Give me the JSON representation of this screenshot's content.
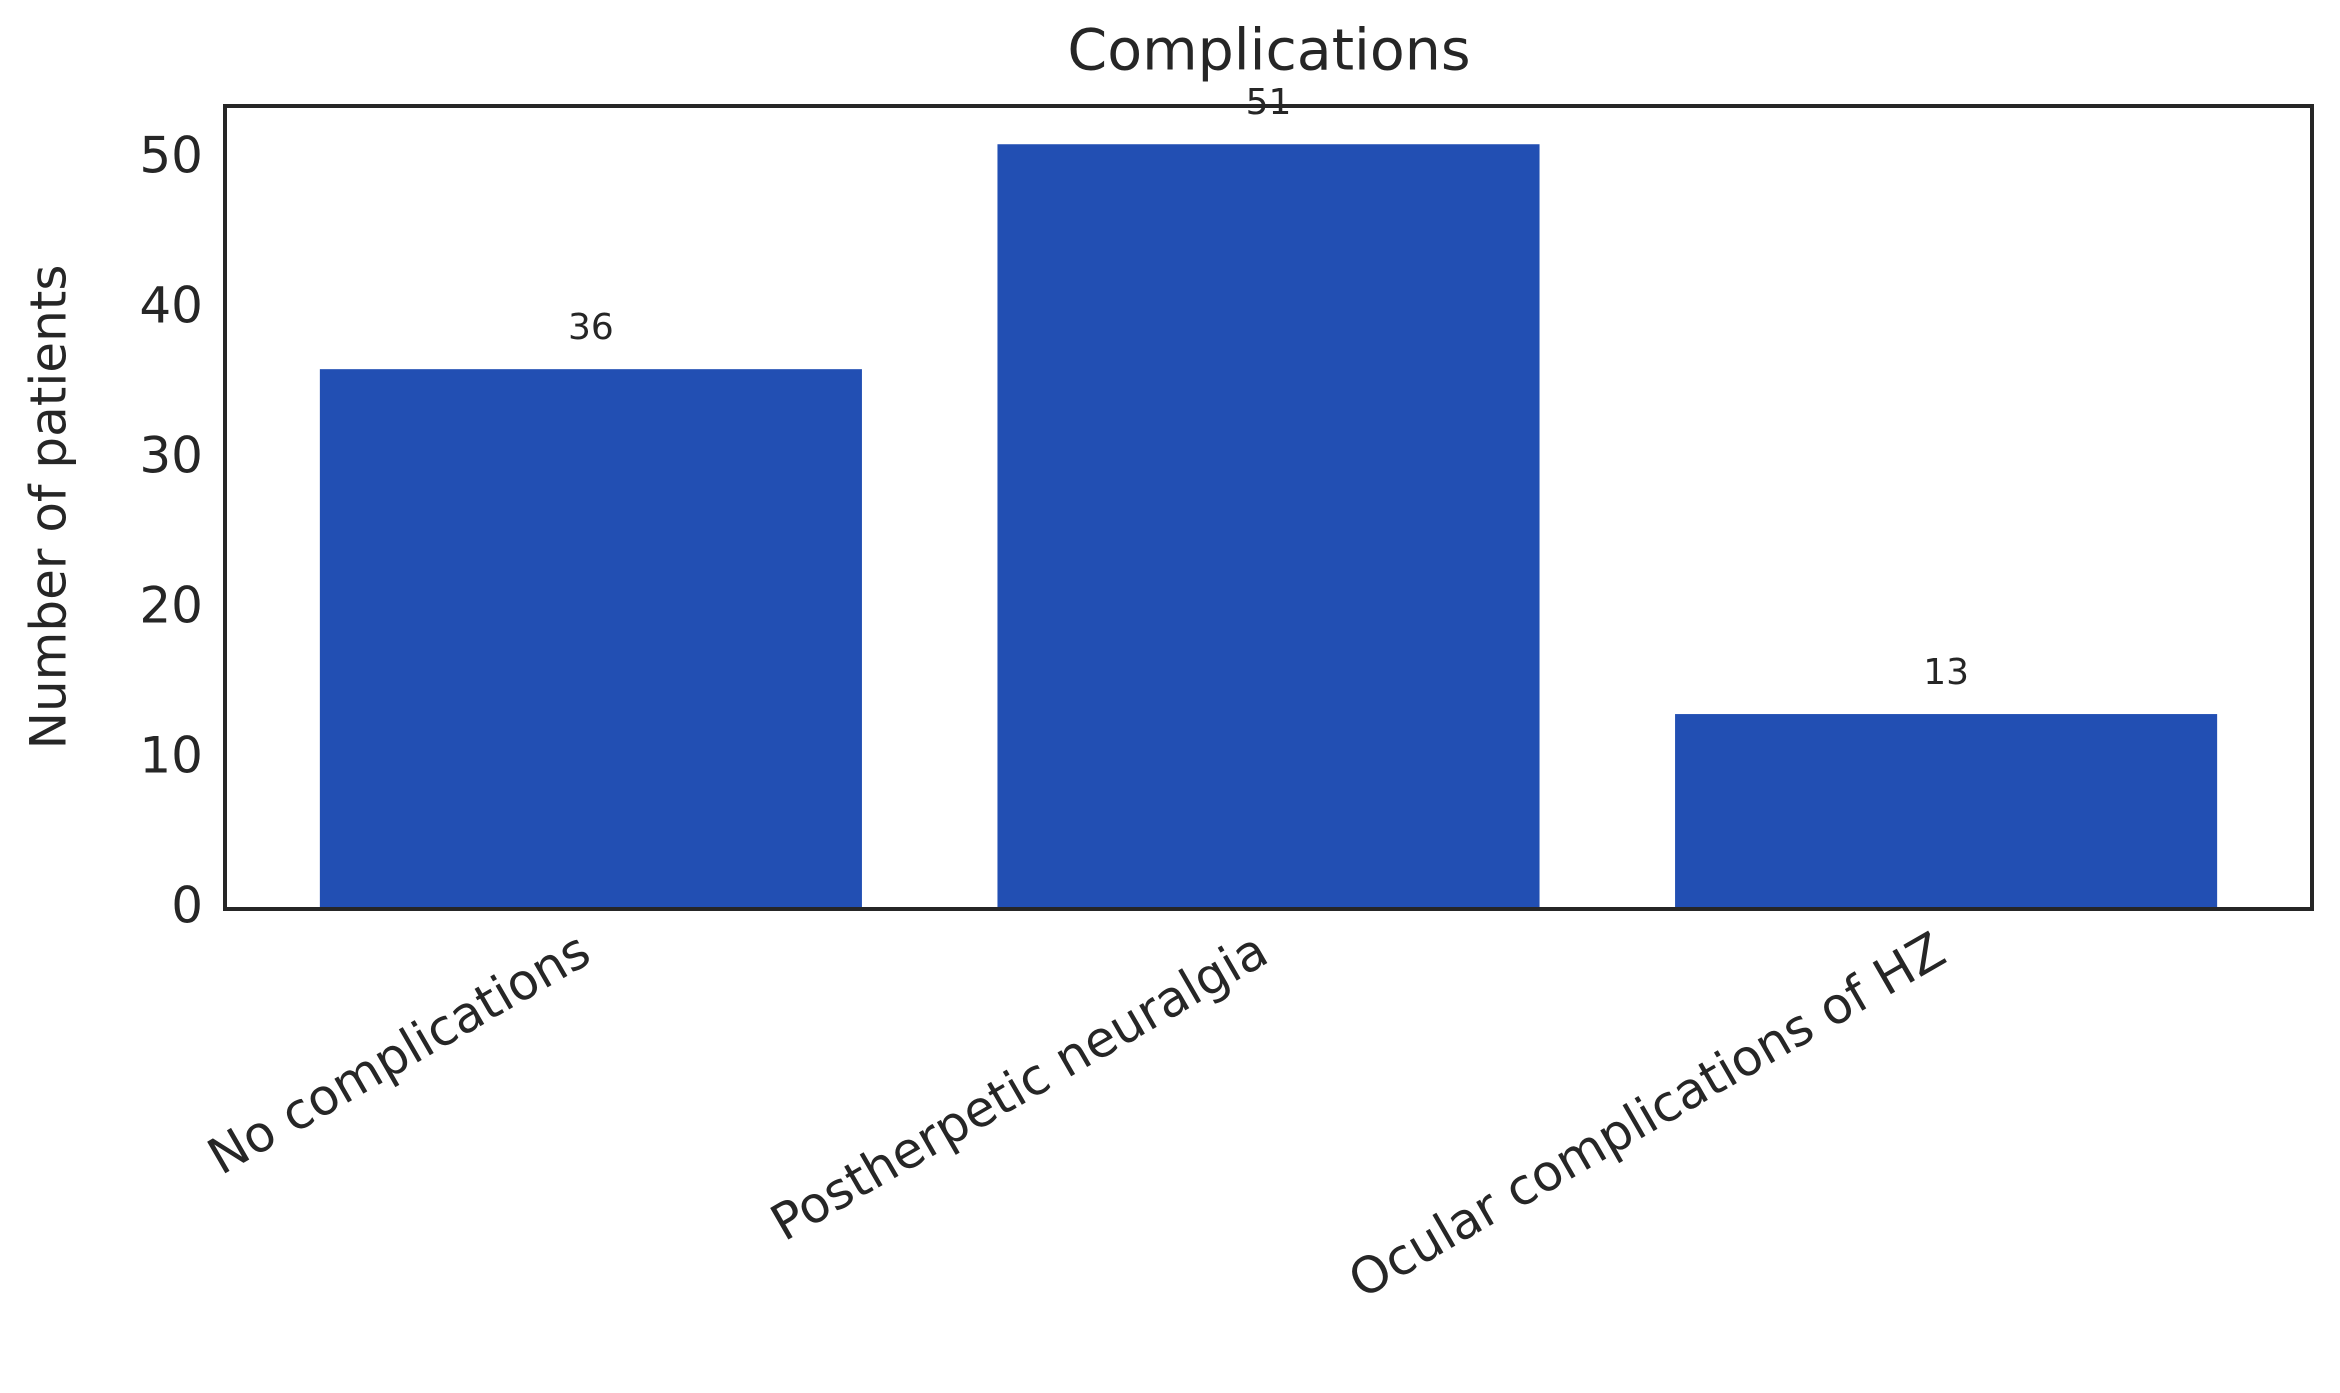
{
  "chart_data": {
    "type": "bar",
    "title": "Complications",
    "categories": [
      "No complications",
      "Postherpetic neuralgia",
      "Ocular complications of HZ"
    ],
    "values": [
      36,
      51,
      13
    ],
    "color": "#224fb3",
    "y_label": "Number of patients",
    "ylim": [
      0,
      53.55
    ],
    "yticks": [
      0,
      10,
      20,
      30,
      40,
      50
    ],
    "grid": false
  }
}
